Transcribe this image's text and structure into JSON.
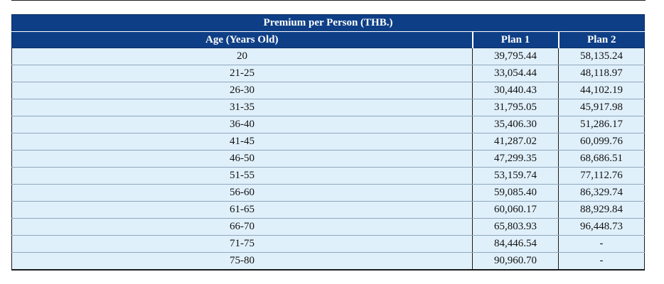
{
  "table": {
    "title": "Premium per Person (THB.)",
    "columns": [
      "Age (Years Old)",
      "Plan 1",
      "Plan 2"
    ],
    "rows": [
      [
        "20",
        "39,795.44",
        "58,135.24"
      ],
      [
        "21-25",
        "33,054.44",
        "48,118.97"
      ],
      [
        "26-30",
        "30,440.43",
        "44,102.19"
      ],
      [
        "31-35",
        "31,795.05",
        "45,917.98"
      ],
      [
        "36-40",
        "35,406.30",
        "51,286.17"
      ],
      [
        "41-45",
        "41,287.02",
        "60,099.76"
      ],
      [
        "46-50",
        "47,299.35",
        "68,686.51"
      ],
      [
        "51-55",
        "53,159.74",
        "77,112.76"
      ],
      [
        "56-60",
        "59,085.40",
        "86,329.74"
      ],
      [
        "61-65",
        "60,060.17",
        "88,929.84"
      ],
      [
        "66-70",
        "65,803.93",
        "96,448.73"
      ],
      [
        "71-75",
        "84,446.54",
        "-"
      ],
      [
        "75-80",
        "90,960.70",
        "-"
      ]
    ]
  }
}
